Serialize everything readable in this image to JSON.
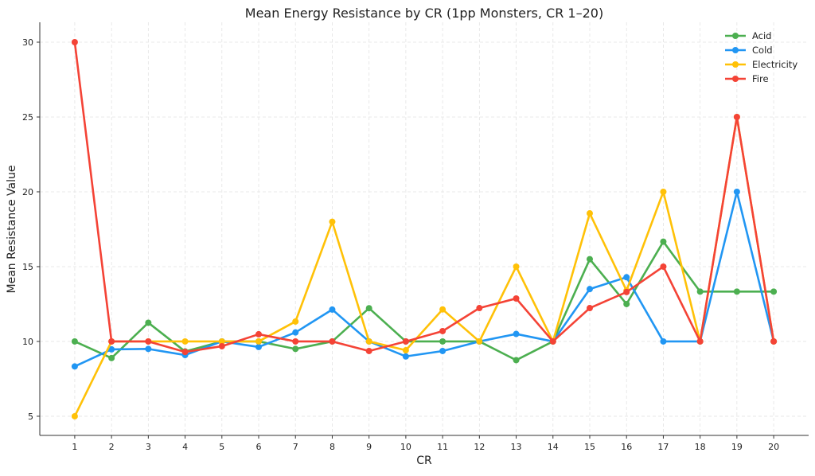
{
  "chart_data": {
    "type": "line",
    "title": "Mean Energy Resistance by CR (1pp Monsters, CR 1–20)",
    "xlabel": "CR",
    "ylabel": "Mean Resistance Value",
    "x": [
      1,
      2,
      3,
      4,
      5,
      6,
      7,
      8,
      9,
      10,
      11,
      12,
      13,
      14,
      15,
      16,
      17,
      18,
      19,
      20
    ],
    "xlim": [
      0.05,
      20.95
    ],
    "ylim": [
      3.72,
      31.33
    ],
    "yticks": [
      5,
      10,
      15,
      20,
      25,
      30
    ],
    "grid": true,
    "legend_position": "top-right",
    "series": [
      {
        "name": "Acid",
        "color": "#4caf50",
        "values": [
          10,
          8.89,
          11.25,
          9.33,
          10,
          10,
          9.5,
          10,
          12.22,
          10,
          10,
          10,
          8.75,
          10,
          15.5,
          12.5,
          16.67,
          13.33,
          13.33,
          13.33
        ]
      },
      {
        "name": "Cold",
        "color": "#2196f3",
        "values": [
          8.33,
          9.47,
          9.5,
          9.09,
          10,
          9.63,
          10.6,
          12.13,
          10,
          9,
          9.36,
          10,
          10.5,
          10,
          13.5,
          14.29,
          10,
          10,
          20,
          10
        ]
      },
      {
        "name": "Electricity",
        "color": "#ffc107",
        "values": [
          5,
          10,
          10,
          10,
          10,
          10,
          11.33,
          18,
          10,
          9.41,
          12.14,
          10,
          15,
          10,
          18.56,
          13.4,
          20,
          10,
          25,
          10
        ]
      },
      {
        "name": "Fire",
        "color": "#f44336",
        "values": [
          30,
          10,
          10,
          9.3,
          9.68,
          10.48,
          10,
          10,
          9.36,
          10,
          10.69,
          12.23,
          12.87,
          10,
          12.23,
          13.3,
          15,
          10,
          25,
          10
        ]
      }
    ]
  }
}
